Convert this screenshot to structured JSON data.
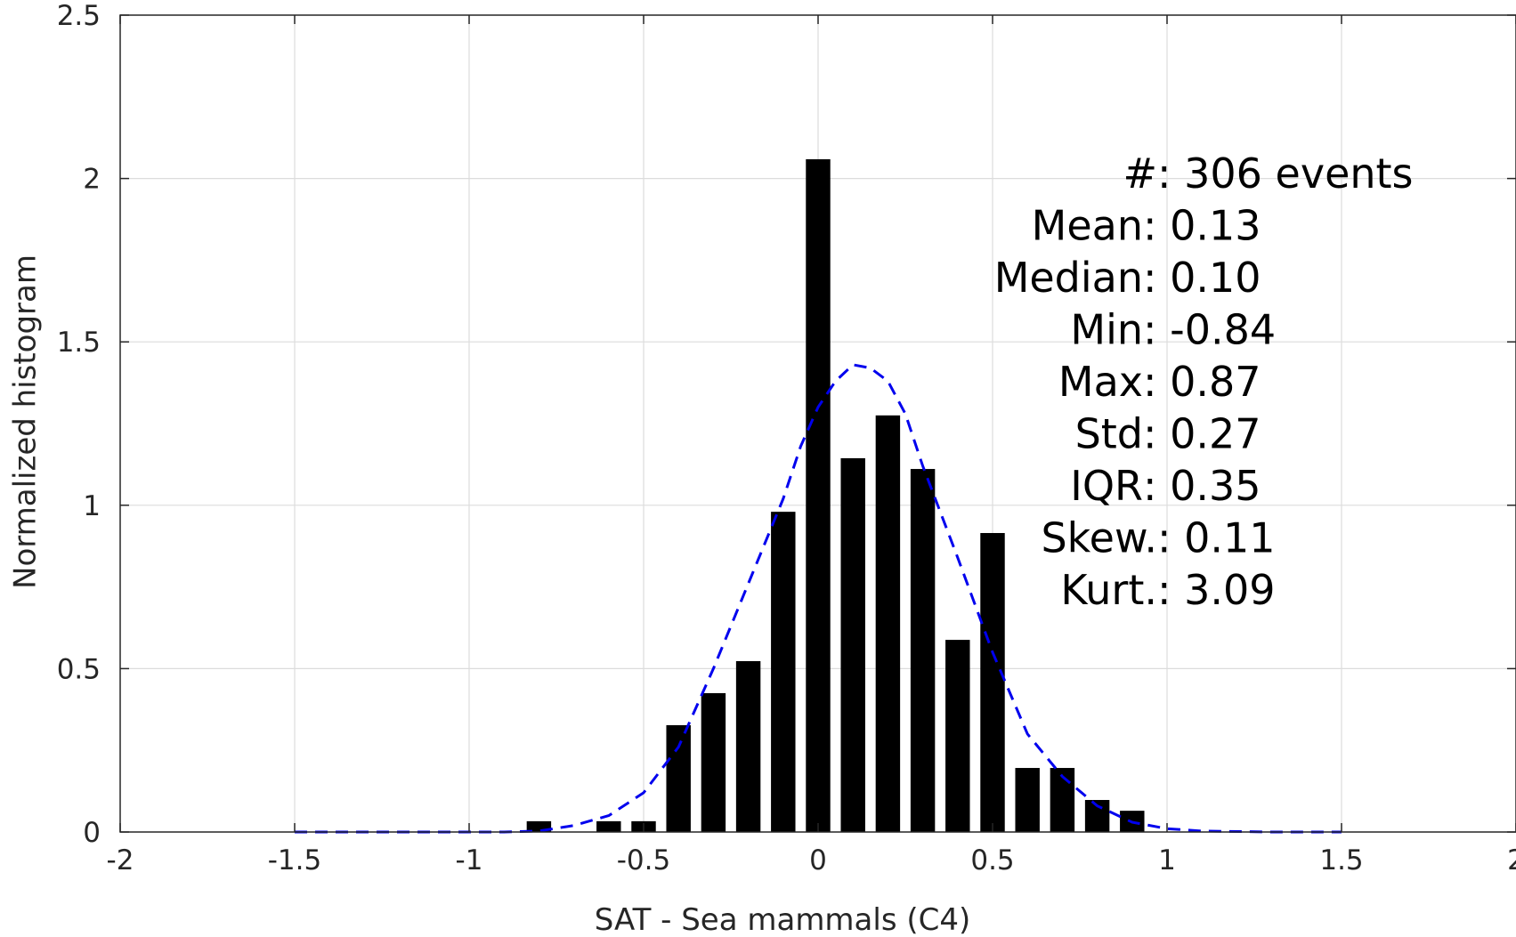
{
  "chart_data": {
    "type": "bar",
    "title": "",
    "xlabel": "SAT - Sea mammals  (C4)",
    "ylabel": "Normalized histogram",
    "xlim": [
      -2,
      2
    ],
    "ylim": [
      0,
      2.5
    ],
    "grid": true,
    "xticks": [
      -2,
      -1.5,
      -1,
      -0.5,
      0,
      0.5,
      1,
      1.5,
      2
    ],
    "xtick_labels": [
      "-2",
      "-1.5",
      "-1",
      "-0.5",
      "0",
      "0.5",
      "1",
      "1.5",
      "2"
    ],
    "yticks": [
      0,
      0.5,
      1,
      1.5,
      2,
      2.5
    ],
    "ytick_labels": [
      "0",
      "0.5",
      "1",
      "1.5",
      "2",
      "2.5"
    ],
    "bar_width": 0.07,
    "bar_color": "#000000",
    "bins": [
      {
        "x": -0.8,
        "y": 0.033
      },
      {
        "x": -0.6,
        "y": 0.033
      },
      {
        "x": -0.5,
        "y": 0.033
      },
      {
        "x": -0.4,
        "y": 0.327
      },
      {
        "x": -0.3,
        "y": 0.425
      },
      {
        "x": -0.2,
        "y": 0.523
      },
      {
        "x": -0.1,
        "y": 0.98
      },
      {
        "x": 0.0,
        "y": 2.059
      },
      {
        "x": 0.1,
        "y": 1.144
      },
      {
        "x": 0.2,
        "y": 1.275
      },
      {
        "x": 0.3,
        "y": 1.111
      },
      {
        "x": 0.4,
        "y": 0.588
      },
      {
        "x": 0.5,
        "y": 0.915
      },
      {
        "x": 0.6,
        "y": 0.196
      },
      {
        "x": 0.7,
        "y": 0.196
      },
      {
        "x": 0.8,
        "y": 0.098
      },
      {
        "x": 0.9,
        "y": 0.065
      }
    ],
    "series": [
      {
        "style": "dashed",
        "color": "#0000ee",
        "x": [
          -1.5,
          -1.2,
          -1.0,
          -0.9,
          -0.8,
          -0.7,
          -0.6,
          -0.5,
          -0.4,
          -0.3,
          -0.2,
          -0.1,
          -0.05,
          0.0,
          0.05,
          0.1,
          0.15,
          0.2,
          0.25,
          0.3,
          0.4,
          0.5,
          0.6,
          0.7,
          0.8,
          0.9,
          1.0,
          1.1,
          1.3,
          1.5
        ],
        "y": [
          0.0,
          0.0,
          0.0,
          0.0,
          0.003,
          0.02,
          0.05,
          0.12,
          0.26,
          0.5,
          0.76,
          1.02,
          1.18,
          1.3,
          1.38,
          1.43,
          1.42,
          1.38,
          1.28,
          1.12,
          0.84,
          0.55,
          0.3,
          0.17,
          0.08,
          0.03,
          0.01,
          0.003,
          0.0,
          0.0
        ]
      }
    ]
  },
  "stats": {
    "lines": [
      {
        "label": "#  ",
        "value": ": 306 events"
      },
      {
        "label": "Mean ",
        "value": ": 0.13"
      },
      {
        "label": "Median ",
        "value": ": 0.10"
      },
      {
        "label": "Min ",
        "value": ": -0.84"
      },
      {
        "label": "Max ",
        "value": ": 0.87"
      },
      {
        "label": "Std ",
        "value": ": 0.27"
      },
      {
        "label": "IQR ",
        "value": ": 0.35"
      },
      {
        "label": "Skew. ",
        "value": ": 0.11"
      },
      {
        "label": "Kurt. ",
        "value": ": 3.09"
      }
    ]
  }
}
